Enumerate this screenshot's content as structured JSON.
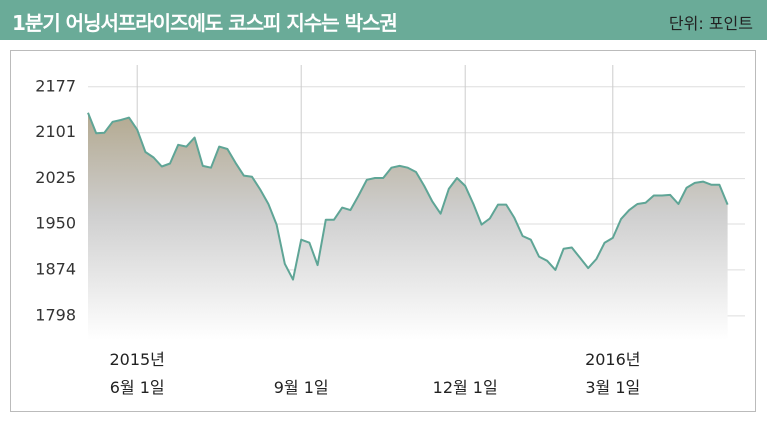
{
  "title": "1분기 어닝서프라이즈에도 코스피 지수는 박스권",
  "unit": "단위: 포인트",
  "chart_data": {
    "type": "area",
    "color": "#5fa596",
    "grid": true,
    "ylim": [
      1758,
      2213
    ],
    "yticks": [
      1798,
      1874,
      1950,
      2025,
      2101,
      2177
    ],
    "categories": [
      null,
      null,
      null,
      null,
      null,
      null,
      "2015년\n6월 1일",
      null,
      null,
      null,
      null,
      null,
      null,
      null,
      null,
      null,
      null,
      null,
      null,
      null,
      null,
      null,
      null,
      null,
      null,
      null,
      "9월 1일",
      null,
      null,
      null,
      null,
      null,
      null,
      null,
      null,
      null,
      null,
      null,
      null,
      null,
      null,
      null,
      null,
      null,
      null,
      null,
      "12월 1일",
      null,
      null,
      null,
      null,
      null,
      null,
      null,
      null,
      null,
      null,
      null,
      null,
      null,
      null,
      null,
      null,
      null,
      "2016년\n3월 1일",
      null,
      null,
      null,
      null,
      null,
      null,
      null,
      null,
      null,
      null,
      null,
      null,
      null,
      null
    ],
    "values": [
      2134,
      2100,
      2101,
      2119,
      2122,
      2126,
      2106,
      2069,
      2060,
      2045,
      2050,
      2081,
      2078,
      2093,
      2046,
      2043,
      2078,
      2074,
      2051,
      2030,
      2028,
      2007,
      1983,
      1949,
      1884,
      1858,
      1924,
      1919,
      1882,
      1957,
      1957,
      1977,
      1973,
      1997,
      2023,
      2026,
      2026,
      2043,
      2046,
      2043,
      2036,
      2013,
      1987,
      1967,
      2008,
      2026,
      2013,
      1983,
      1949,
      1959,
      1982,
      1982,
      1960,
      1930,
      1924,
      1896,
      1889,
      1874,
      1909,
      1911,
      1894,
      1877,
      1892,
      1919,
      1927,
      1958,
      1973,
      1983,
      1985,
      1997,
      1997,
      1998,
      1983,
      2010,
      2018,
      2020,
      2015,
      2015,
      1982
    ]
  }
}
